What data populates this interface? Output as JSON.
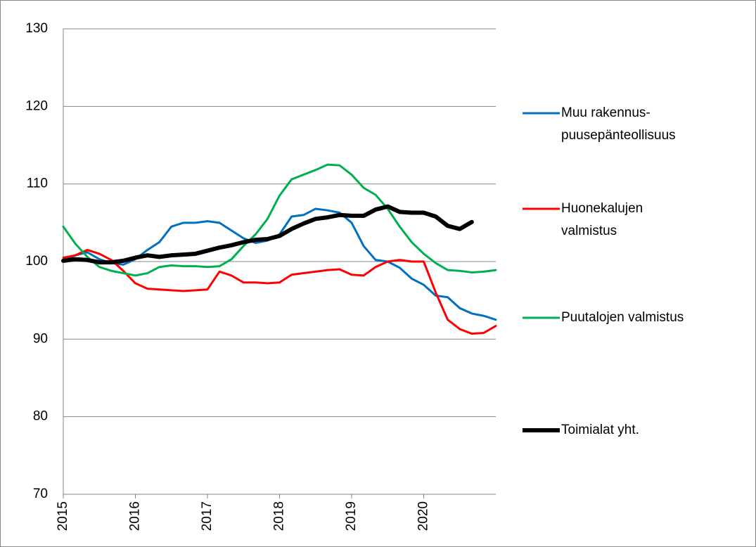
{
  "chart_data": {
    "type": "line",
    "x": [
      2015,
      2015.167,
      2015.333,
      2015.5,
      2015.667,
      2015.833,
      2016,
      2016.167,
      2016.333,
      2016.5,
      2016.667,
      2016.833,
      2017,
      2017.167,
      2017.333,
      2017.5,
      2017.667,
      2017.833,
      2018,
      2018.167,
      2018.333,
      2018.5,
      2018.667,
      2018.833,
      2019,
      2019.167,
      2019.333,
      2019.5,
      2019.667,
      2019.833,
      2020,
      2020.167,
      2020.333,
      2020.5,
      2020.667,
      2020.833,
      2021
    ],
    "series": [
      {
        "name": "Muu rakennus-puusepänteollisuus",
        "color": "#0070c0",
        "width": 3,
        "values": [
          100.2,
          100.8,
          101.2,
          100.3,
          99.8,
          99.6,
          100.3,
          101.5,
          102.5,
          104.5,
          105.0,
          105.0,
          105.2,
          105.0,
          104.0,
          103.0,
          102.4,
          102.7,
          103.5,
          105.8,
          106.0,
          106.8,
          106.6,
          106.3,
          105.0,
          102.0,
          100.2,
          100.0,
          99.2,
          97.8,
          97.0,
          95.6,
          95.4,
          94.0,
          93.3,
          93.0,
          92.5
        ]
      },
      {
        "name": "Huonekalujen valmistus",
        "color": "#ff0000",
        "width": 3,
        "values": [
          100.5,
          100.8,
          101.5,
          101.0,
          100.2,
          98.8,
          97.2,
          96.5,
          96.4,
          96.3,
          96.2,
          96.3,
          96.4,
          98.7,
          98.2,
          97.3,
          97.3,
          97.2,
          97.3,
          98.3,
          98.5,
          98.7,
          98.9,
          99.0,
          98.3,
          98.2,
          99.3,
          100.0,
          100.2,
          100.0,
          100.0,
          96.0,
          92.5,
          91.3,
          90.7,
          90.8,
          91.7
        ]
      },
      {
        "name": "Puutalojen valmistus",
        "color": "#00b050",
        "width": 3,
        "values": [
          104.5,
          102.3,
          100.6,
          99.3,
          98.8,
          98.5,
          98.2,
          98.5,
          99.3,
          99.5,
          99.4,
          99.4,
          99.3,
          99.4,
          100.3,
          102.0,
          103.5,
          105.5,
          108.5,
          110.6,
          111.2,
          111.8,
          112.5,
          112.4,
          111.2,
          109.5,
          108.6,
          106.8,
          104.5,
          102.5,
          101.0,
          99.8,
          98.9,
          98.8,
          98.6,
          98.7,
          98.9
        ]
      },
      {
        "name": "Toimialat yht.",
        "color": "#000000",
        "width": 6,
        "values": [
          100.1,
          100.3,
          100.2,
          99.9,
          99.9,
          100.1,
          100.5,
          100.8,
          100.6,
          100.8,
          100.9,
          101.0,
          101.4,
          101.8,
          102.1,
          102.5,
          102.8,
          102.9,
          103.3,
          104.2,
          104.9,
          105.5,
          105.7,
          106.0,
          105.9,
          105.9,
          106.7,
          107.1,
          106.4,
          106.3,
          106.3,
          105.8,
          104.6,
          104.2,
          105.1,
          null,
          null
        ]
      }
    ],
    "xlim": [
      2015,
      2021
    ],
    "xticks": [
      2015,
      2016,
      2017,
      2018,
      2019,
      2020
    ],
    "ylim": [
      70,
      130
    ],
    "yticks": [
      70,
      80,
      90,
      100,
      110,
      120,
      130
    ],
    "grid": true,
    "legend": "right"
  }
}
